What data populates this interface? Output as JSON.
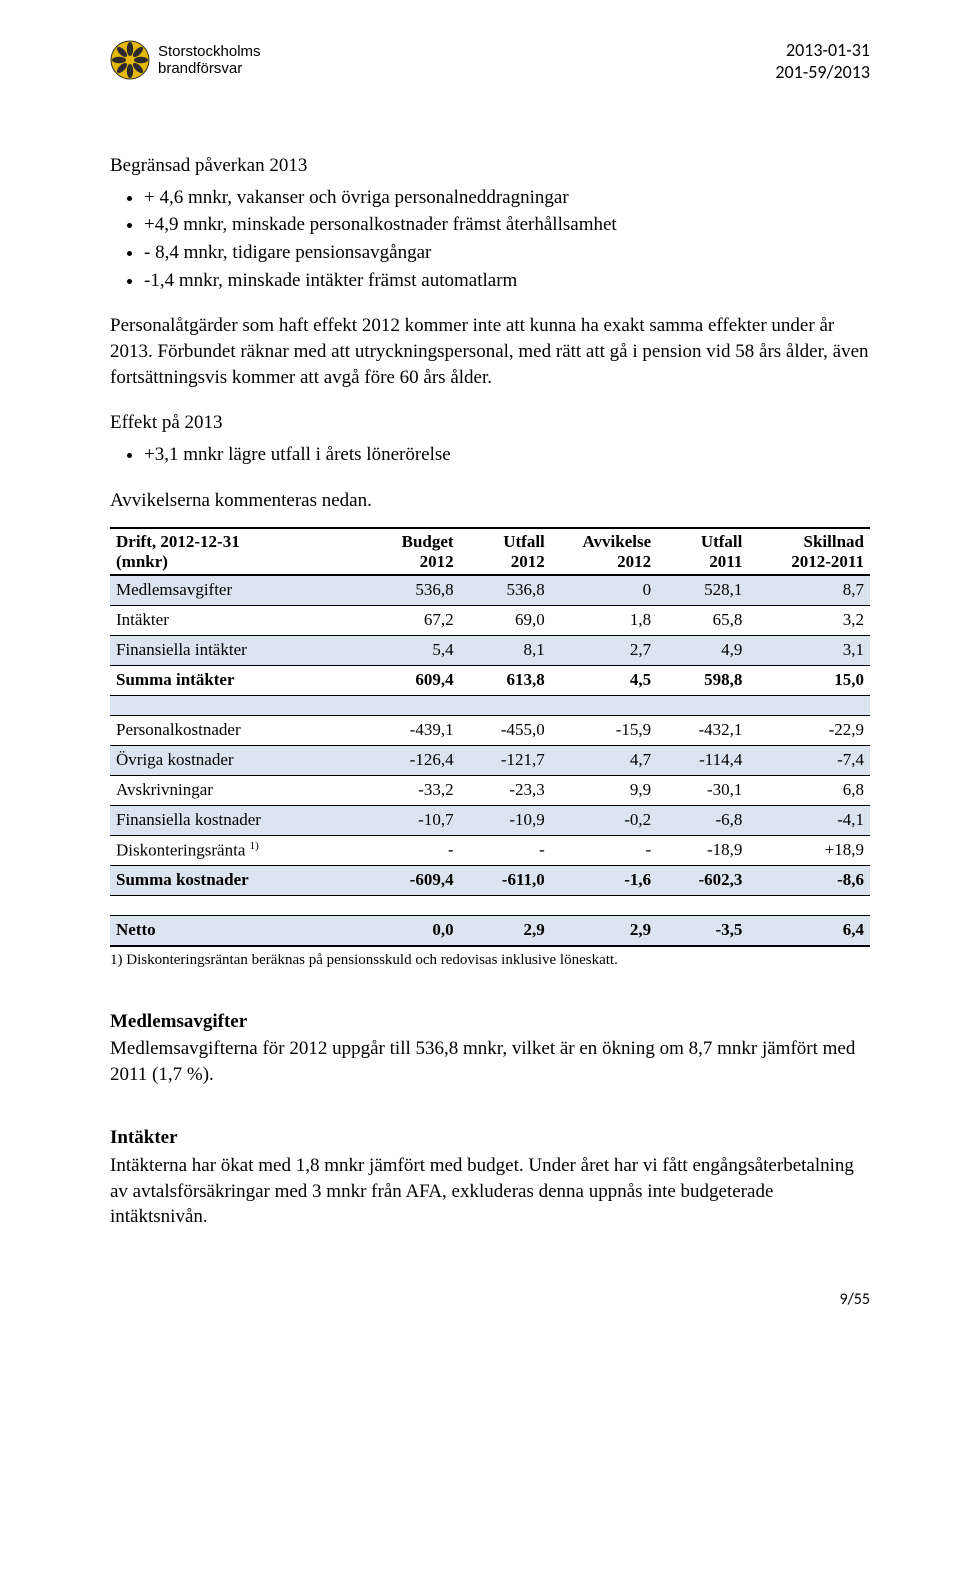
{
  "header": {
    "org_line1": "Storstockholms",
    "org_line2": "brandförsvar",
    "date": "2013-01-31",
    "ref": "201-59/2013"
  },
  "section1": {
    "title": "Begränsad påverkan 2013",
    "bullets": [
      "+ 4,6 mnkr, vakanser och övriga personalneddragningar",
      "+4,9 mnkr, minskade personalkostnader främst återhållsamhet",
      "- 8,4 mnkr, tidigare pensionsavgångar",
      "-1,4 mnkr, minskade intäkter främst automatlarm"
    ],
    "para": "Personalåtgärder som haft effekt 2012 kommer inte att kunna ha exakt samma effekter under år 2013. Förbundet räknar med att utryckningspersonal, med rätt att gå i pension vid 58 års ålder, även fortsättningsvis kommer att avgå före 60 års ålder."
  },
  "section2": {
    "title": "Effekt på 2013",
    "bullets": [
      "+3,1 mnkr lägre utfall i årets lönerörelse"
    ]
  },
  "avvik_intro": "Avvikelserna kommenteras nedan.",
  "table": {
    "head": {
      "c0a": "Drift, 2012-12-31",
      "c0b": "(mnkr)",
      "c1a": "Budget",
      "c1b": "2012",
      "c2a": "Utfall",
      "c2b": "2012",
      "c3a": "Avvikelse",
      "c3b": "2012",
      "c4a": "Utfall",
      "c4b": "2011",
      "c5a": "Skillnad",
      "c5b": "2012-2011"
    },
    "rows_a": [
      {
        "label": "Medlemsavgifter",
        "v": [
          "536,8",
          "536,8",
          "0",
          "528,1",
          "8,7"
        ],
        "alt": true
      },
      {
        "label": "Intäkter",
        "v": [
          "67,2",
          "69,0",
          "1,8",
          "65,8",
          "3,2"
        ],
        "alt": false
      },
      {
        "label": "Finansiella intäkter",
        "v": [
          "5,4",
          "8,1",
          "2,7",
          "4,9",
          "3,1"
        ],
        "alt": true
      },
      {
        "label": "Summa intäkter",
        "v": [
          "609,4",
          "613,8",
          "4,5",
          "598,8",
          "15,0"
        ],
        "alt": false,
        "bold": true
      }
    ],
    "rows_b": [
      {
        "label": "Personalkostnader",
        "v": [
          "-439,1",
          "-455,0",
          "-15,9",
          "-432,1",
          "-22,9"
        ],
        "alt": false
      },
      {
        "label": "Övriga kostnader",
        "v": [
          "-126,4",
          "-121,7",
          "4,7",
          "-114,4",
          "-7,4"
        ],
        "alt": true
      },
      {
        "label": "Avskrivningar",
        "v": [
          "-33,2",
          "-23,3",
          "9,9",
          "-30,1",
          "6,8"
        ],
        "alt": false
      },
      {
        "label": "Finansiella kostnader",
        "v": [
          "-10,7",
          "-10,9",
          "-0,2",
          "-6,8",
          "-4,1"
        ],
        "alt": true
      },
      {
        "label": "Diskonteringsränta ",
        "sup": "1)",
        "v": [
          "-",
          "-",
          "-",
          "-18,9",
          "+18,9"
        ],
        "alt": false
      },
      {
        "label": "Summa kostnader",
        "v": [
          "-609,4",
          "-611,0",
          "-1,6",
          "-602,3",
          "-8,6"
        ],
        "alt": true,
        "bold": true
      }
    ],
    "rows_c": [
      {
        "label": "Netto",
        "v": [
          "0,0",
          "2,9",
          "2,9",
          "-3,5",
          "6,4"
        ],
        "alt": true,
        "bold": true
      }
    ],
    "footnote": "1) Diskonteringsräntan beräknas på pensionsskuld och redovisas inklusive löneskatt."
  },
  "medlem": {
    "title": "Medlemsavgifter",
    "text": "Medlemsavgifterna för 2012 uppgår till 536,8 mnkr, vilket är en ökning om 8,7 mnkr jämfört med 2011 (1,7 %)."
  },
  "intakter": {
    "title": "Intäkter",
    "text": "Intäkterna har ökat med 1,8 mnkr jämfört med budget. Under året har vi fått engångsåterbetalning av avtalsförsäkringar med 3 mnkr från AFA, exkluderas denna uppnås inte budgeterade intäktsnivån."
  },
  "page_num": "9/55",
  "colors": {
    "alt_row": "#dbe5f1",
    "logo_gold": "#e6b800",
    "logo_dark": "#2b2b2b"
  }
}
